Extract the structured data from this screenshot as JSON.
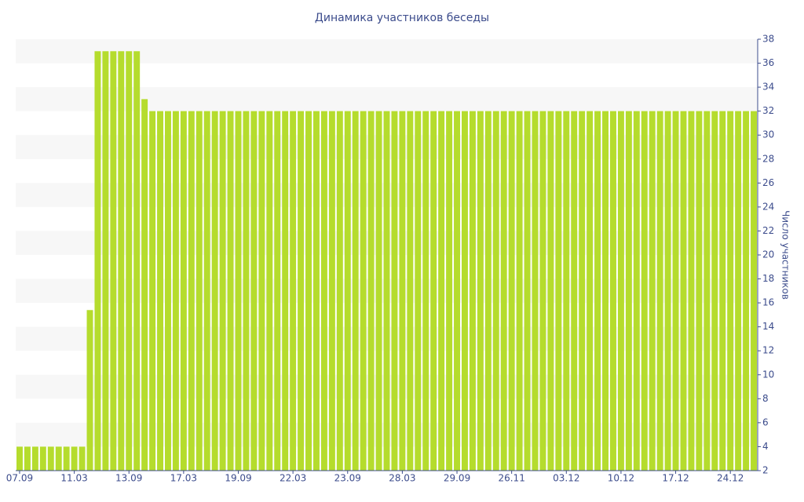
{
  "chart_data": {
    "type": "bar",
    "title": "Динамика участников беседы",
    "y_label": "Число участников",
    "categories": [
      "07.09",
      null,
      null,
      null,
      null,
      null,
      null,
      "11.03",
      null,
      null,
      null,
      null,
      null,
      null,
      "13.09",
      null,
      null,
      null,
      null,
      null,
      null,
      "17.03",
      null,
      null,
      null,
      null,
      null,
      null,
      "19.09",
      null,
      null,
      null,
      null,
      null,
      null,
      "22.03",
      null,
      null,
      null,
      null,
      null,
      null,
      "23.09",
      null,
      null,
      null,
      null,
      null,
      null,
      "28.03",
      null,
      null,
      null,
      null,
      null,
      null,
      "29.09",
      null,
      null,
      null,
      null,
      null,
      null,
      "26.11",
      null,
      null,
      null,
      null,
      null,
      null,
      "03.12",
      null,
      null,
      null,
      null,
      null,
      null,
      "10.12",
      null,
      null,
      null,
      null,
      null,
      null,
      "17.12",
      null,
      null,
      null,
      null,
      null,
      null,
      "24.12",
      null,
      null,
      null
    ],
    "values": [
      4,
      4,
      4,
      4,
      4,
      4,
      4,
      4,
      4,
      15.4,
      37,
      37,
      37,
      37,
      37,
      37,
      33,
      32,
      32,
      32,
      32,
      32,
      32,
      32,
      32,
      32,
      32,
      32,
      32,
      32,
      32,
      32,
      32,
      32,
      32,
      32,
      32,
      32,
      32,
      32,
      32,
      32,
      32,
      32,
      32,
      32,
      32,
      32,
      32,
      32,
      32,
      32,
      32,
      32,
      32,
      32,
      32,
      32,
      32,
      32,
      32,
      32,
      32,
      32,
      32,
      32,
      32,
      32,
      32,
      32,
      32,
      32,
      32,
      32,
      32,
      32,
      32,
      32,
      32,
      32,
      32,
      32,
      32,
      32,
      32,
      32,
      32,
      32,
      32,
      32,
      32,
      32,
      32,
      32,
      32
    ],
    "color": "#b5dc2d",
    "ylim": [
      2,
      38
    ],
    "yticks": [
      2,
      4,
      6,
      8,
      10,
      12,
      14,
      16,
      18,
      20,
      22,
      24,
      26,
      28,
      30,
      32,
      34,
      36,
      38
    ],
    "y_axis_side": "right",
    "grid": "bands"
  }
}
